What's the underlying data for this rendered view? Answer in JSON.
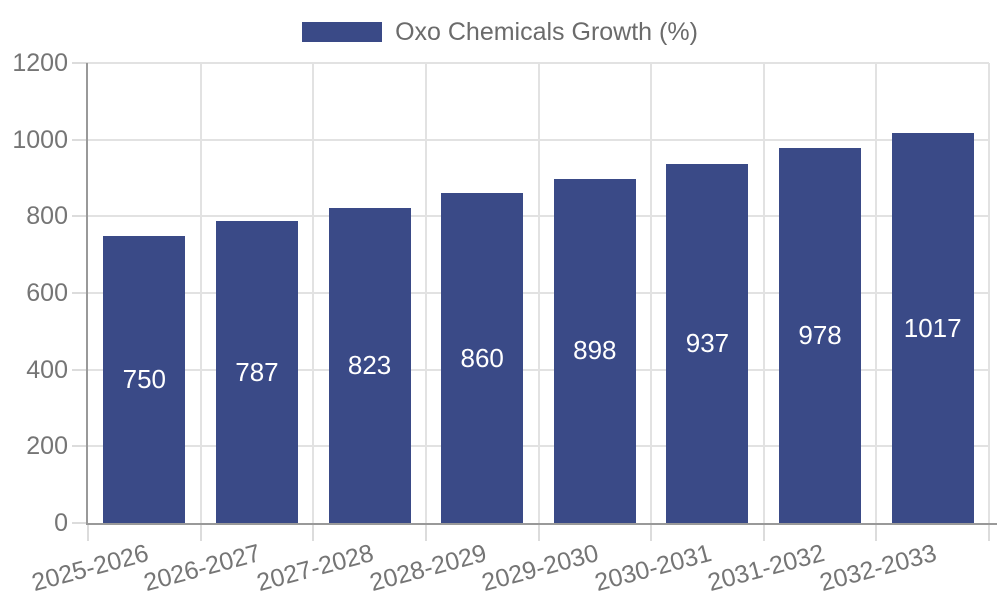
{
  "legend": {
    "label": "Oxo Chemicals Growth (%)"
  },
  "colors": {
    "bar": "#3A4A87",
    "value_label": "#FFFFFF",
    "axis_text": "#757575",
    "legend_text": "#6B6B6B",
    "grid_line": "#E2E2E2",
    "tick_line": "#DCDCDC",
    "axis_line": "#999999",
    "background": "#FFFFFF"
  },
  "chart_data": {
    "type": "bar",
    "title": "",
    "series_name": "Oxo Chemicals Growth (%)",
    "categories": [
      "2025-2026",
      "2026-2027",
      "2027-2028",
      "2028-2029",
      "2029-2030",
      "2030-2031",
      "2031-2032",
      "2032-2033"
    ],
    "values": [
      750,
      787,
      823,
      860,
      898,
      937,
      978,
      1017
    ],
    "yticks": [
      0,
      200,
      400,
      600,
      800,
      1000,
      1200
    ],
    "ylim": [
      0,
      1200
    ],
    "xlabel": "",
    "ylabel": "",
    "grid": true,
    "legend_position": "top-center",
    "value_labels": "inside-center",
    "x_label_rotation_deg": -15
  }
}
